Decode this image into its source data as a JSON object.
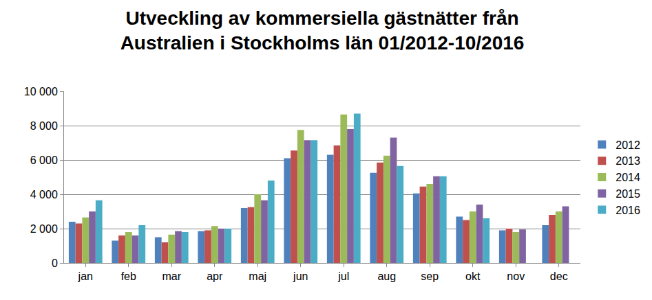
{
  "chart_data": {
    "type": "bar",
    "title": "Utveckling av kommersiella gästnätter från\nAustralien i Stockholms län 01/2012-10/2016",
    "categories": [
      "jan",
      "feb",
      "mar",
      "apr",
      "maj",
      "jun",
      "jul",
      "aug",
      "sep",
      "okt",
      "nov",
      "dec"
    ],
    "series": [
      {
        "name": "2012",
        "color": "#4F81BD",
        "values": [
          2400,
          1300,
          1500,
          1850,
          3200,
          6100,
          6300,
          5250,
          4050,
          2700,
          1900,
          2200
        ]
      },
      {
        "name": "2013",
        "color": "#C0504D",
        "values": [
          2300,
          1600,
          1200,
          1900,
          3250,
          6550,
          6850,
          5850,
          4450,
          2500,
          2000,
          2800
        ]
      },
      {
        "name": "2014",
        "color": "#9BBB59",
        "values": [
          2650,
          1800,
          1650,
          2150,
          4000,
          7750,
          8650,
          6250,
          4600,
          3000,
          1800,
          3000
        ]
      },
      {
        "name": "2015",
        "color": "#8064A2",
        "values": [
          3000,
          1600,
          1850,
          2000,
          3650,
          7150,
          7800,
          7300,
          5050,
          3400,
          1950,
          3300
        ]
      },
      {
        "name": "2016",
        "color": "#4BACC6",
        "values": [
          3650,
          2200,
          1800,
          2000,
          4800,
          7150,
          8700,
          5650,
          5050,
          2600,
          null,
          null
        ]
      }
    ],
    "ylim": [
      0,
      10000
    ],
    "yticks": [
      0,
      {
        "value": 2000,
        "label": "2 000"
      },
      {
        "value": 4000,
        "label": "4 000"
      },
      {
        "value": 6000,
        "label": "6 000"
      },
      {
        "value": 8000,
        "label": "8 000"
      },
      {
        "value": 10000,
        "label": "10 000"
      }
    ],
    "grid": true,
    "legend": "right"
  }
}
